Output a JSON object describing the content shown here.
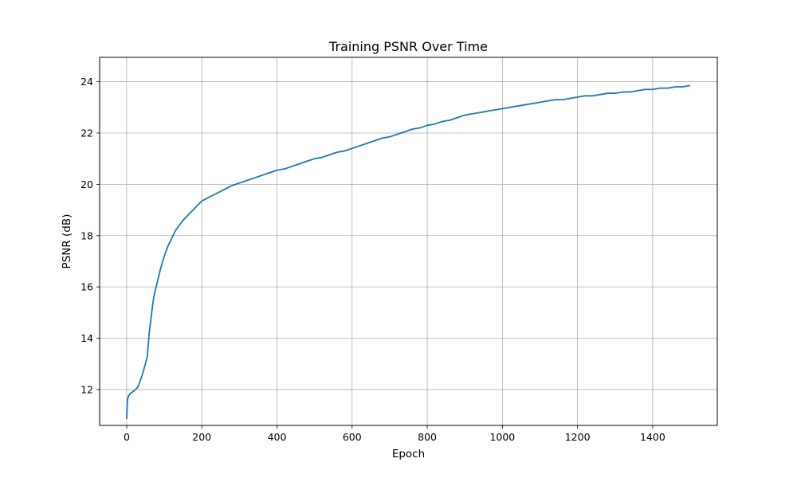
{
  "chart_data": {
    "type": "line",
    "title": "Training PSNR Over Time",
    "xlabel": "Epoch",
    "ylabel": "PSNR (dB)",
    "xlim": [
      -72,
      1572
    ],
    "ylim": [
      10.6,
      24.95
    ],
    "xticks": [
      0,
      200,
      400,
      600,
      800,
      1000,
      1200,
      1400
    ],
    "yticks": [
      12,
      14,
      16,
      18,
      20,
      22,
      24
    ],
    "grid": true,
    "legend": "none",
    "colors": {
      "line": "#1f77b4",
      "grid": "#b0b0b0"
    },
    "series": [
      {
        "x": [
          0,
          2,
          5,
          10,
          20,
          30,
          40,
          50,
          55,
          60,
          65,
          70,
          75,
          80,
          90,
          100,
          110,
          120,
          130,
          140,
          150,
          160,
          170,
          180,
          190,
          200,
          220,
          240,
          260,
          280,
          300,
          320,
          340,
          360,
          380,
          400,
          420,
          440,
          460,
          480,
          500,
          520,
          540,
          560,
          580,
          600,
          620,
          640,
          660,
          680,
          700,
          720,
          740,
          760,
          780,
          800,
          820,
          840,
          860,
          880,
          900,
          920,
          940,
          960,
          980,
          1000,
          1020,
          1040,
          1060,
          1080,
          1100,
          1120,
          1140,
          1160,
          1180,
          1200,
          1220,
          1240,
          1260,
          1280,
          1300,
          1320,
          1340,
          1360,
          1380,
          1400,
          1420,
          1440,
          1460,
          1480,
          1500
        ],
        "values": [
          10.85,
          11.6,
          11.75,
          11.85,
          11.95,
          12.1,
          12.5,
          13.0,
          13.3,
          14.2,
          14.8,
          15.4,
          15.8,
          16.1,
          16.7,
          17.2,
          17.6,
          17.9,
          18.2,
          18.4,
          18.6,
          18.75,
          18.9,
          19.05,
          19.2,
          19.35,
          19.5,
          19.65,
          19.8,
          19.95,
          20.05,
          20.15,
          20.25,
          20.35,
          20.45,
          20.55,
          20.6,
          20.7,
          20.8,
          20.9,
          21.0,
          21.05,
          21.15,
          21.25,
          21.3,
          21.4,
          21.5,
          21.6,
          21.7,
          21.8,
          21.85,
          21.95,
          22.05,
          22.15,
          22.2,
          22.3,
          22.35,
          22.45,
          22.5,
          22.6,
          22.7,
          22.75,
          22.8,
          22.85,
          22.9,
          22.95,
          23.0,
          23.05,
          23.1,
          23.15,
          23.2,
          23.25,
          23.3,
          23.3,
          23.35,
          23.4,
          23.45,
          23.45,
          23.5,
          23.55,
          23.55,
          23.6,
          23.6,
          23.65,
          23.7,
          23.7,
          23.75,
          23.75,
          23.8,
          23.8,
          23.85
        ]
      }
    ]
  }
}
